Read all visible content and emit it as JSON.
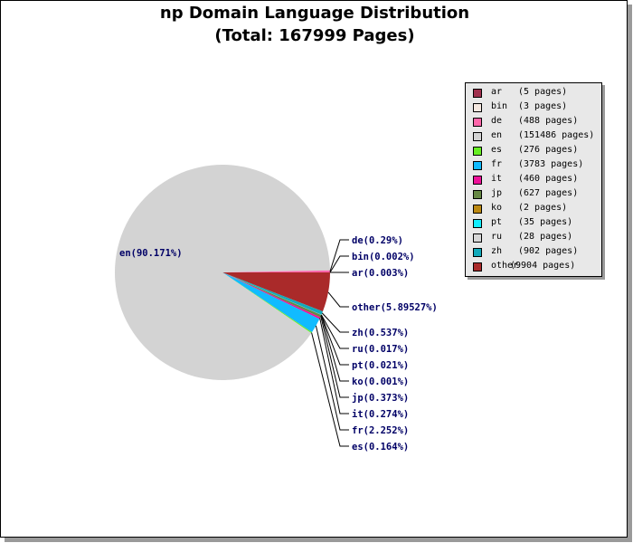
{
  "chart_data": {
    "type": "pie",
    "title": "np Domain Language Distribution",
    "subtitle": "(Total: 167999 Pages)",
    "slices": [
      {
        "code": "ar",
        "pages": 5,
        "pages_text": "(5 pages)",
        "label": "ar(0.003%)",
        "color": "#a0304e"
      },
      {
        "code": "bin",
        "pages": 3,
        "pages_text": "(3 pages)",
        "label": "bin(0.002%)",
        "color": "#f5e8e0"
      },
      {
        "code": "de",
        "pages": 488,
        "pages_text": "(488 pages)",
        "label": "de(0.29%)",
        "color": "#ff66aa"
      },
      {
        "code": "en",
        "pages": 151486,
        "pages_text": "(151486 pages)",
        "label": "en(90.171%)",
        "color": "#d3d3d3"
      },
      {
        "code": "es",
        "pages": 276,
        "pages_text": "(276 pages)",
        "label": "es(0.164%)",
        "color": "#66ee22"
      },
      {
        "code": "fr",
        "pages": 3783,
        "pages_text": "(3783 pages)",
        "label": "fr(2.252%)",
        "color": "#11bbff"
      },
      {
        "code": "it",
        "pages": 460,
        "pages_text": "(460 pages)",
        "label": "it(0.274%)",
        "color": "#ee1199"
      },
      {
        "code": "jp",
        "pages": 627,
        "pages_text": "(627 pages)",
        "label": "jp(0.373%)",
        "color": "#668844"
      },
      {
        "code": "ko",
        "pages": 2,
        "pages_text": "(2 pages)",
        "label": "ko(0.001%)",
        "color": "#bb8811"
      },
      {
        "code": "pt",
        "pages": 35,
        "pages_text": "(35 pages)",
        "label": "pt(0.021%)",
        "color": "#11eeff"
      },
      {
        "code": "ru",
        "pages": 28,
        "pages_text": "(28 pages)",
        "label": "ru(0.017%)",
        "color": "#d6d6d6"
      },
      {
        "code": "zh",
        "pages": 902,
        "pages_text": "(902 pages)",
        "label": "zh(0.537%)",
        "color": "#11aabb"
      },
      {
        "code": "other",
        "pages": 9904,
        "pages_text": "(9904 pages)",
        "label": "other(5.89527%)",
        "color": "#aa2a2a"
      }
    ],
    "legend_position": "top-right"
  }
}
